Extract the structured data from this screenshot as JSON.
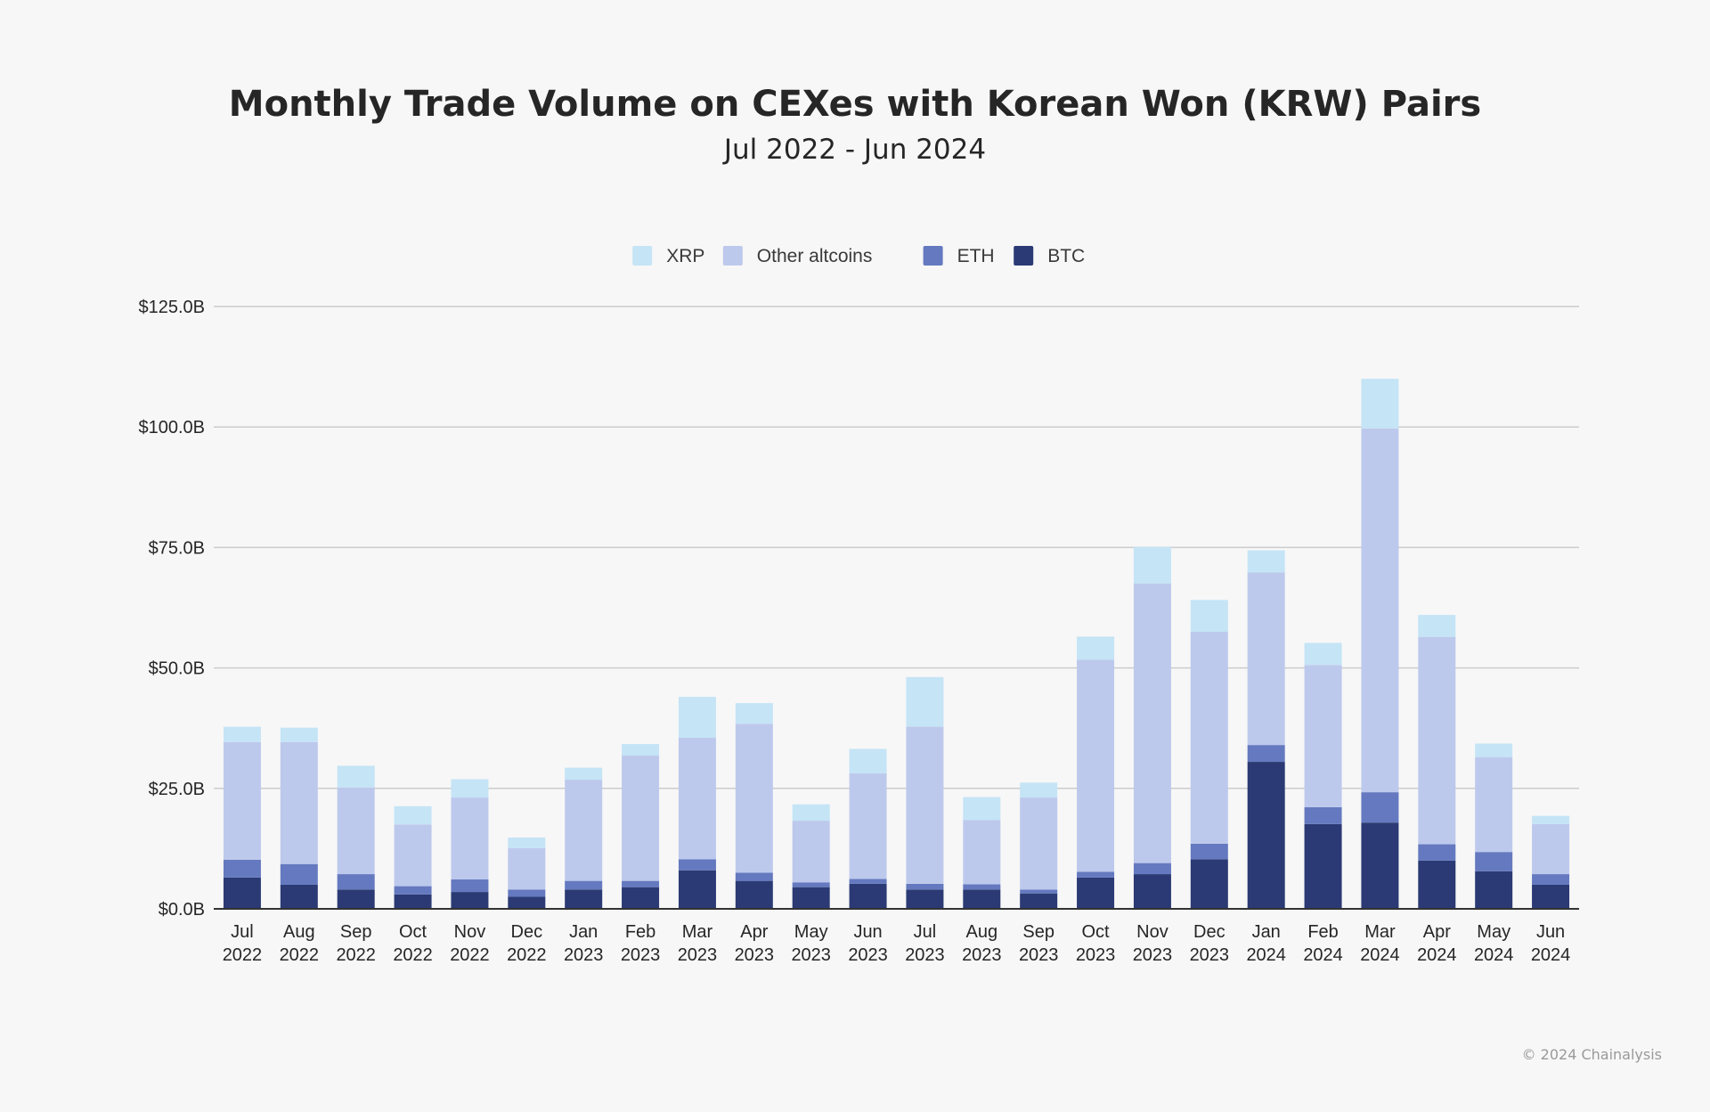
{
  "header": {
    "title": "Monthly Trade Volume on CEXes with Korean Won (KRW) Pairs",
    "subtitle": "Jul 2022 - Jun 2024"
  },
  "footer": {
    "copyright": "© 2024 Chainalysis"
  },
  "chart_data": {
    "type": "bar",
    "stacked": true,
    "title": "Monthly Trade Volume on CEXes with Korean Won (KRW) Pairs",
    "subtitle": "Jul 2022 - Jun 2024",
    "xlabel": "",
    "ylabel": "",
    "ylim": [
      0,
      125
    ],
    "yticks": [
      0,
      25,
      50,
      75,
      100,
      125
    ],
    "ytick_labels": [
      "$0.0B",
      "$25.0B",
      "$50.0B",
      "$75.0B",
      "$100.0B",
      "$125.0B"
    ],
    "grid": true,
    "legend_position": "top-center",
    "categories": [
      [
        "Jul",
        "2022"
      ],
      [
        "Aug",
        "2022"
      ],
      [
        "Sep",
        "2022"
      ],
      [
        "Oct",
        "2022"
      ],
      [
        "Nov",
        "2022"
      ],
      [
        "Dec",
        "2022"
      ],
      [
        "Jan",
        "2023"
      ],
      [
        "Feb",
        "2023"
      ],
      [
        "Mar",
        "2023"
      ],
      [
        "Apr",
        "2023"
      ],
      [
        "May",
        "2023"
      ],
      [
        "Jun",
        "2023"
      ],
      [
        "Jul",
        "2023"
      ],
      [
        "Aug",
        "2023"
      ],
      [
        "Sep",
        "2023"
      ],
      [
        "Oct",
        "2023"
      ],
      [
        "Nov",
        "2023"
      ],
      [
        "Dec",
        "2023"
      ],
      [
        "Jan",
        "2024"
      ],
      [
        "Feb",
        "2024"
      ],
      [
        "Mar",
        "2024"
      ],
      [
        "Apr",
        "2024"
      ],
      [
        "May",
        "2024"
      ],
      [
        "Jun",
        "2024"
      ]
    ],
    "legend_order": [
      "XRP",
      "Other altcoins",
      "ETH",
      "BTC"
    ],
    "series": [
      {
        "name": "BTC",
        "color": "#2b3a74",
        "values": [
          6.5,
          5.0,
          4.0,
          3.0,
          3.5,
          2.5,
          4.0,
          4.5,
          8.0,
          5.8,
          4.5,
          5.2,
          4.0,
          4.0,
          3.2,
          6.5,
          7.2,
          10.3,
          30.5,
          17.6,
          17.9,
          10.0,
          7.8,
          5.0
        ]
      },
      {
        "name": "ETH",
        "color": "#6479bf",
        "values": [
          3.7,
          4.3,
          3.2,
          1.7,
          2.6,
          1.5,
          1.8,
          1.3,
          2.3,
          1.7,
          1.0,
          1.0,
          1.2,
          1.1,
          0.8,
          1.2,
          2.3,
          3.2,
          3.5,
          3.5,
          6.3,
          3.4,
          4.0,
          2.2
        ]
      },
      {
        "name": "Other altcoins",
        "color": "#bdc9ec",
        "values": [
          24.4,
          25.3,
          18.0,
          12.8,
          17.0,
          8.6,
          21.0,
          26.0,
          25.2,
          30.9,
          12.8,
          21.9,
          32.6,
          13.3,
          19.1,
          44.0,
          58.0,
          44.0,
          35.8,
          29.5,
          75.5,
          43.0,
          19.7,
          10.4
        ]
      },
      {
        "name": "XRP",
        "color": "#c5e4f6",
        "values": [
          3.2,
          3.0,
          4.5,
          3.8,
          3.8,
          2.2,
          2.5,
          2.4,
          8.5,
          4.3,
          3.4,
          5.1,
          10.3,
          4.8,
          3.1,
          4.8,
          7.6,
          6.6,
          4.6,
          4.6,
          10.3,
          4.6,
          2.8,
          1.7
        ]
      }
    ]
  }
}
